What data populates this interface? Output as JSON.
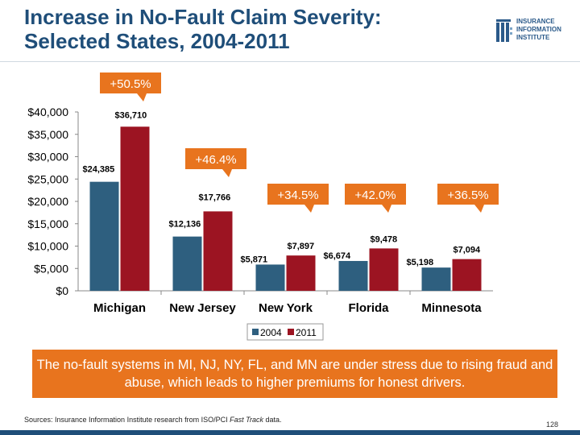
{
  "slide": {
    "title_line1": "Increase in No-Fault Claim Severity:",
    "title_line2": "Selected States, 2004-2011",
    "banner_text": "The no-fault systems in MI, NJ, NY, FL, and MN are under stress due to rising fraud and abuse, which leads to higher premiums for honest drivers.",
    "sources_prefix": "Sources:  Insurance Information Institute research from ISO/PCI ",
    "sources_italic": "Fast Track",
    "sources_suffix": " data.",
    "page_number": "128"
  },
  "logo": {
    "line1": "INSURANCE",
    "line2": "INFORMATION",
    "line3": "INSTITUTE"
  },
  "chart_data": {
    "type": "bar",
    "title": "",
    "xlabel": "",
    "ylabel": "",
    "categories": [
      "Michigan",
      "New Jersey",
      "New York",
      "Florida",
      "Minnesota"
    ],
    "series": [
      {
        "name": "2004",
        "values": [
          24385,
          12136,
          5871,
          6674,
          5198
        ],
        "labels": [
          "$24,385",
          "$12,136",
          "$5,871",
          "$6,674",
          "$5,198"
        ],
        "color": "#2e5f7f"
      },
      {
        "name": "2011",
        "values": [
          36710,
          17766,
          7897,
          9478,
          7094
        ],
        "labels": [
          "$36,710",
          "$17,766",
          "$7,897",
          "$9,478",
          "$7,094"
        ],
        "color": "#9c1422"
      }
    ],
    "changes": [
      "+50.5%",
      "+46.4%",
      "+34.5%",
      "+42.0%",
      "+36.5%"
    ],
    "change_color": "#e8741e",
    "ylim": [
      0,
      40000
    ],
    "yticks": [
      0,
      5000,
      10000,
      15000,
      20000,
      25000,
      30000,
      35000,
      40000
    ],
    "ytick_labels": [
      "$0",
      "$5,000",
      "$10,000",
      "$15,000",
      "$20,000",
      "$25,000",
      "$30,000",
      "$35,000",
      "$40,000"
    ],
    "grid": false,
    "legend_position": "bottom"
  }
}
